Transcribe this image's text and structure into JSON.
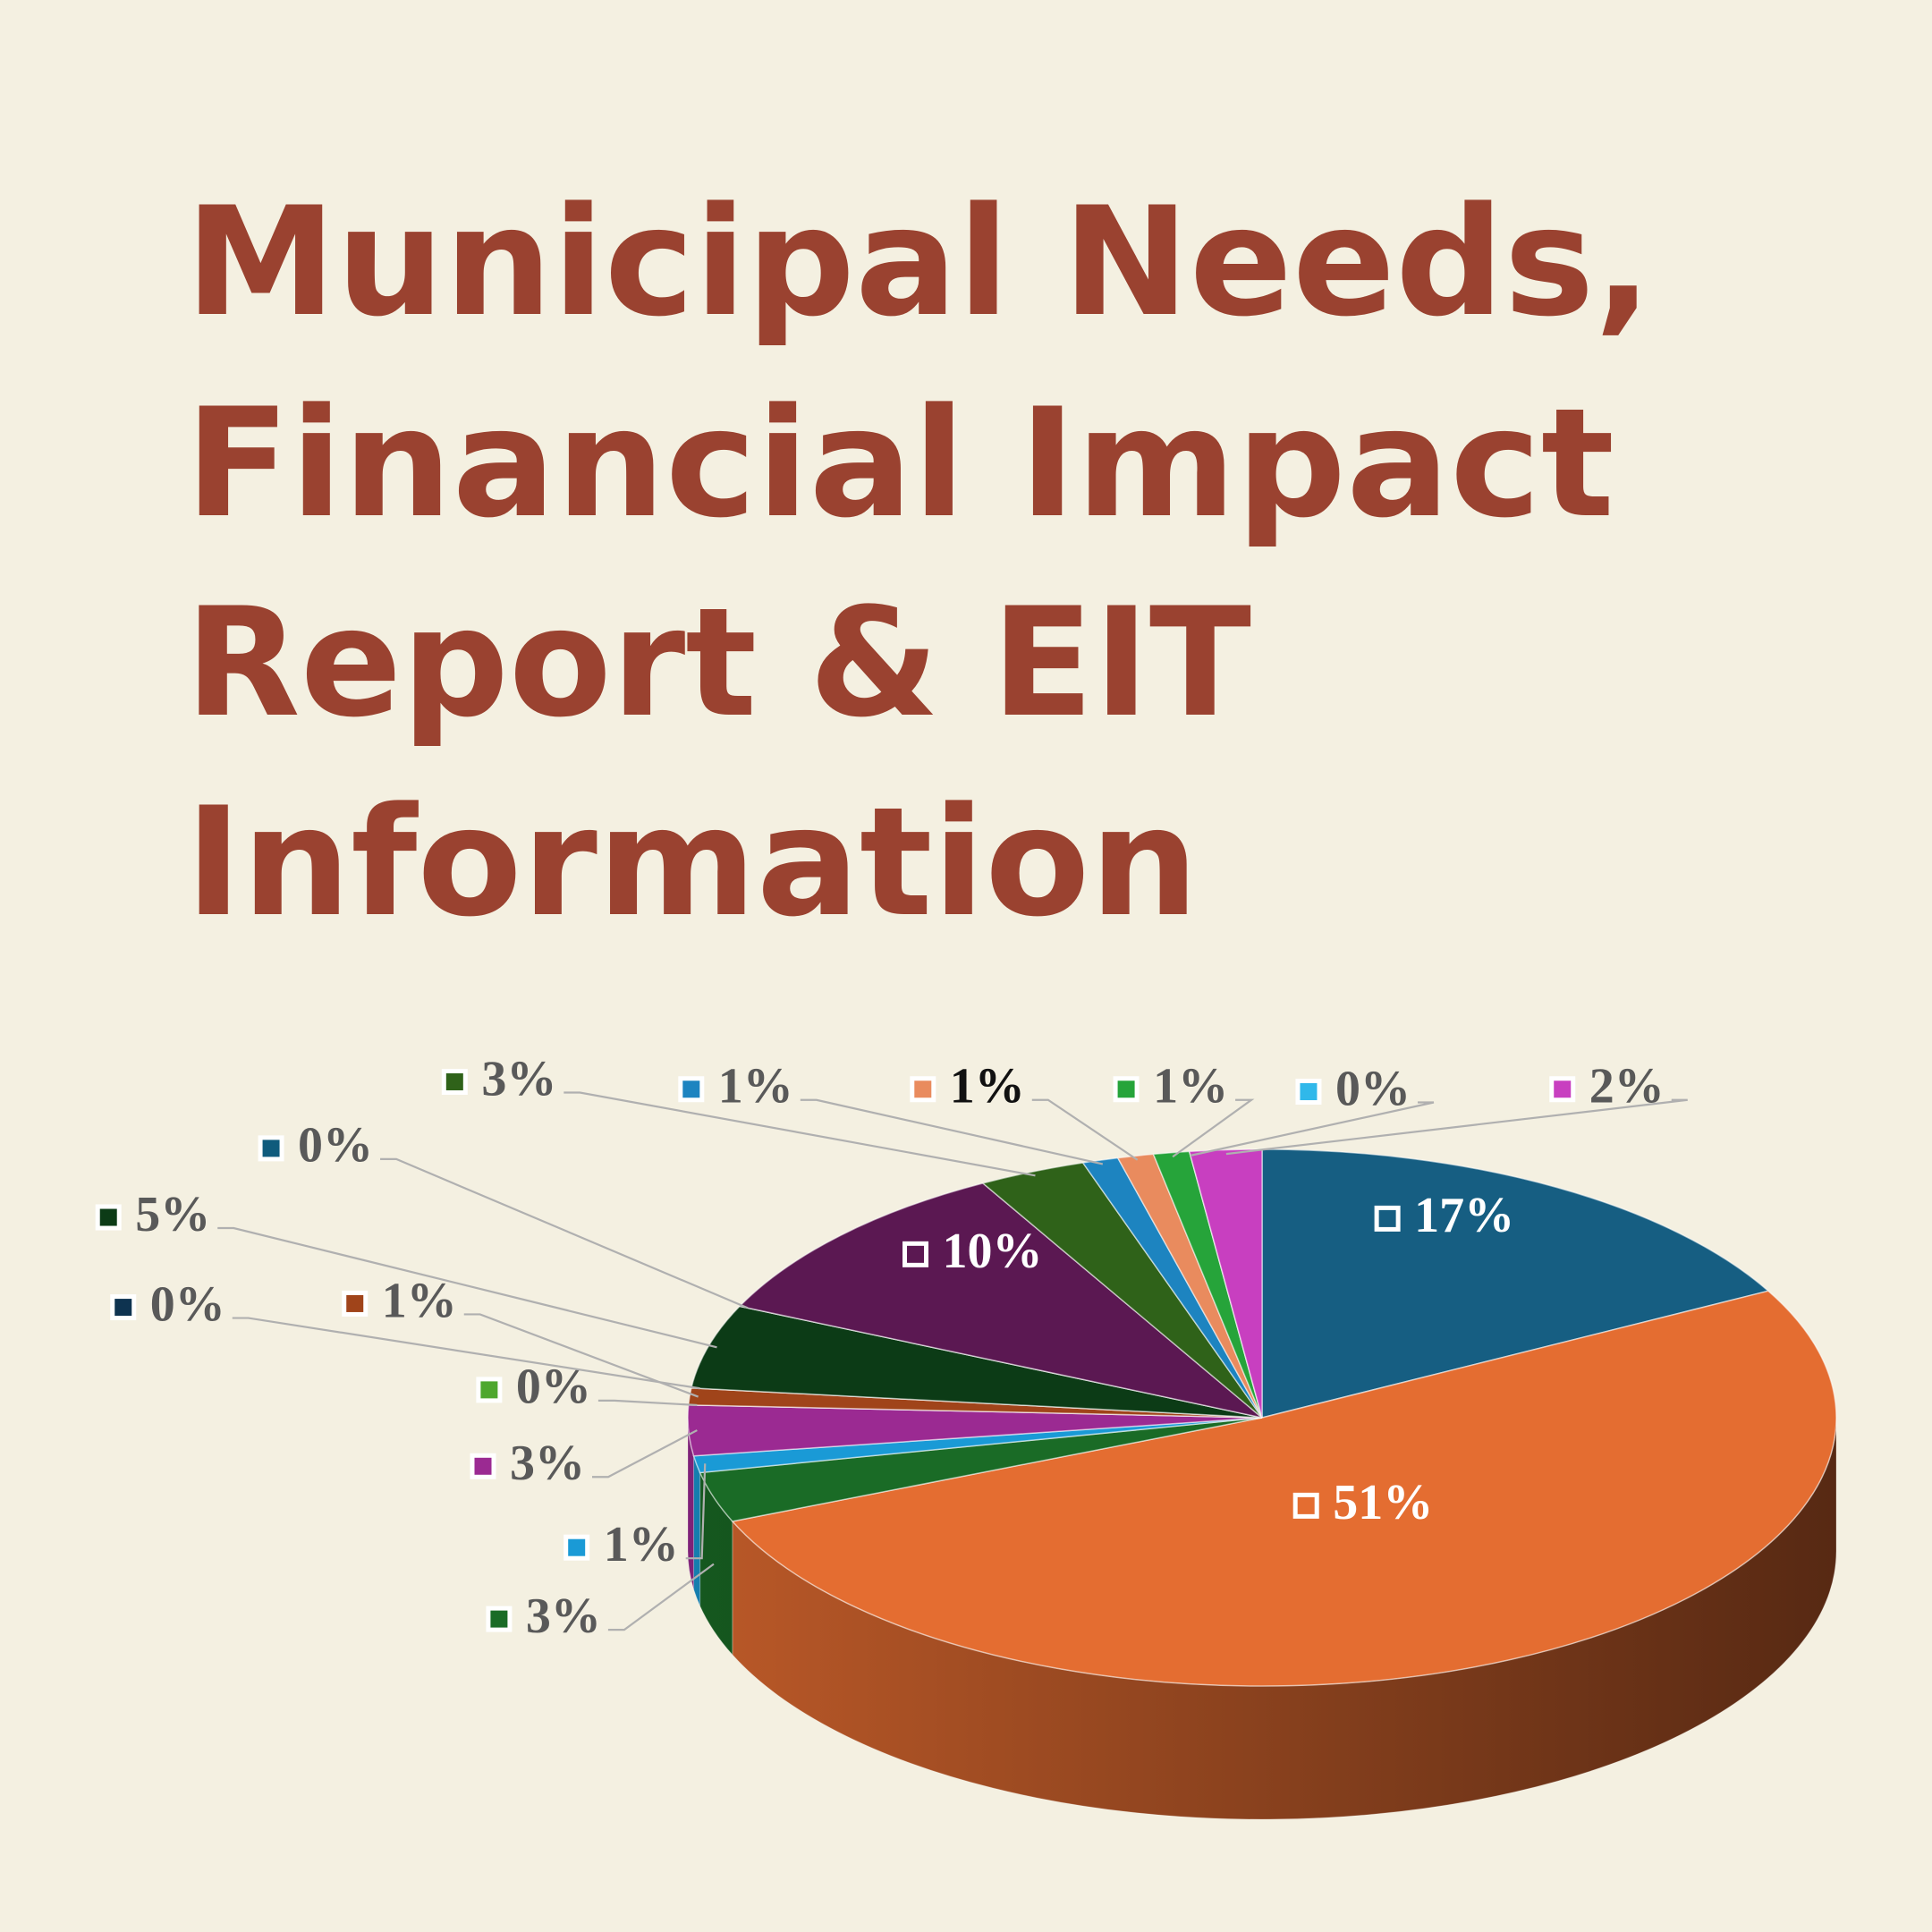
{
  "chart_data": {
    "type": "pie3d",
    "title": [
      "Municipal Needs,",
      "Financial Impact",
      "Report & EIT",
      "Information"
    ],
    "values": [
      17,
      51,
      3,
      1,
      3,
      0,
      1,
      0,
      5,
      0,
      10,
      3,
      1,
      1,
      1,
      0,
      2
    ],
    "value_labels": [
      "17%",
      "51%",
      "3%",
      "1%",
      "3%",
      "0%",
      "1%",
      "0%",
      "5%",
      "0%",
      "10%",
      "3%",
      "1%",
      "1%",
      "1%",
      "0%",
      "2%"
    ],
    "colors": [
      "#165e82",
      "#e46d31",
      "#1a6b26",
      "#1a9ad6",
      "#9b2a92",
      "#4ea72e",
      "#a0441a",
      "#0e3350",
      "#0c3b16",
      "#0f5b7c",
      "#5b1852",
      "#2f6219",
      "#1d84c0",
      "#e98b5e",
      "#26a43a",
      "#30b8ea",
      "#c83fc0"
    ]
  }
}
